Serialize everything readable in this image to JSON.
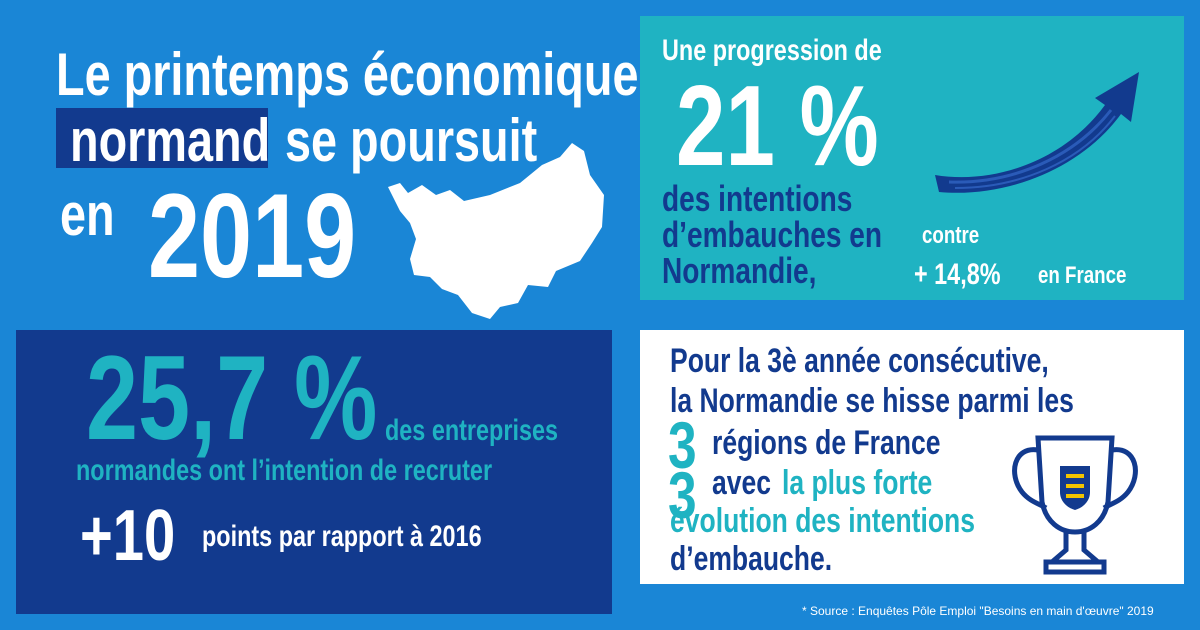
{
  "header": {
    "line1": "Le printemps économique",
    "highlight": "normand",
    "line2_rest": "se  poursuit",
    "en": "en",
    "year": "2019"
  },
  "teal_panel": {
    "intro": "Une progression de",
    "percent": "21 %",
    "line1": "des intentions",
    "line2": "d’embauches en",
    "line3": "Normandie,",
    "contre": "contre",
    "france_value": "+ 14,8%",
    "france_label": "en France"
  },
  "dark_panel": {
    "percent": "25,7 %",
    "line1": "des entreprises",
    "line2": "normandes ont l’intention de recruter",
    "plus_value": "+10",
    "plus_label": "points par rapport à 2016"
  },
  "white_panel": {
    "line1": "Pour la 3è année consécutive,",
    "line2": "la Normandie se hisse parmi les",
    "num": "3",
    "line3": "régions de France",
    "line4_a": "avec",
    "line4_b": "la plus forte",
    "line5": "évolution des intentions",
    "line6": "d’embauche."
  },
  "footer": {
    "source": "* Source : Enquêtes Pôle Emploi \"Besoins en main d'œuvre\" 2019"
  },
  "colors": {
    "background": "#1a86d6",
    "navy": "#123a8e",
    "teal": "#1fb3c2",
    "white": "#ffffff"
  },
  "icons": [
    "normandy-map-icon",
    "upward-arrow-icon",
    "trophy-icon"
  ]
}
